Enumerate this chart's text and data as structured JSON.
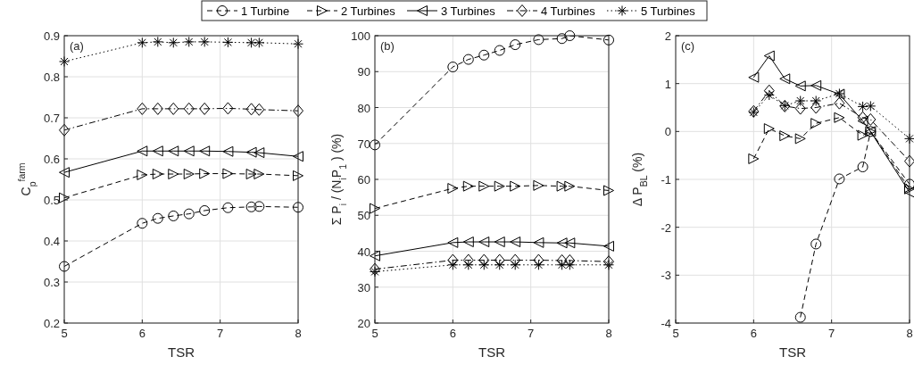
{
  "chart_data": [
    {
      "type": "line",
      "ylabel": "C$_{p}$$^{farm}$",
      "xlabel": "TSR",
      "annotations": [
        "(a)"
      ],
      "x": [
        5,
        6,
        6.2,
        6.4,
        6.6,
        6.8,
        7.1,
        7.4,
        7.5,
        8
      ],
      "xlim": [
        5,
        8
      ],
      "xticks": [
        5,
        6,
        7,
        8
      ],
      "ylim": [
        0.2,
        0.9
      ],
      "yticks": [
        0.2,
        0.3,
        0.4,
        0.5,
        0.6,
        0.7,
        0.8,
        0.9
      ],
      "grid": true,
      "legend": "top",
      "series": [
        {
          "name": "1 Turbine",
          "color": "#000000",
          "marker": "circle",
          "line_style": "dashed",
          "values": [
            0.338,
            0.443,
            0.455,
            0.461,
            0.466,
            0.474,
            0.481,
            0.483,
            0.484,
            0.482
          ]
        },
        {
          "name": "2 Turbines",
          "color": "#000000",
          "marker": "triangle-right",
          "line_style": "dashed",
          "values": [
            0.505,
            0.561,
            0.563,
            0.563,
            0.563,
            0.564,
            0.564,
            0.563,
            0.563,
            0.559
          ]
        },
        {
          "name": "3 Turbines",
          "color": "#000000",
          "marker": "triangle-left",
          "line_style": "solid",
          "values": [
            0.567,
            0.619,
            0.619,
            0.619,
            0.619,
            0.619,
            0.618,
            0.616,
            0.615,
            0.606
          ]
        },
        {
          "name": "4 Turbines",
          "color": "#000000",
          "marker": "diamond",
          "line_style": "dashdot",
          "values": [
            0.67,
            0.722,
            0.722,
            0.722,
            0.722,
            0.722,
            0.723,
            0.721,
            0.72,
            0.717
          ]
        },
        {
          "name": "5 Turbines",
          "color": "#000000",
          "marker": "cross",
          "line_style": "dotted",
          "values": [
            0.837,
            0.883,
            0.885,
            0.883,
            0.885,
            0.885,
            0.884,
            0.883,
            0.883,
            0.88
          ]
        }
      ]
    },
    {
      "type": "line",
      "ylabel": "Σ P$_{i}$ / (N$_{i}$P$_{1}$ ) (%)",
      "xlabel": "TSR",
      "annotations": [
        "(b)"
      ],
      "x": [
        5,
        6,
        6.2,
        6.4,
        6.6,
        6.8,
        7.1,
        7.4,
        7.5,
        8
      ],
      "xlim": [
        5,
        8
      ],
      "xticks": [
        5,
        6,
        7,
        8
      ],
      "ylim": [
        20,
        100
      ],
      "yticks": [
        20,
        30,
        40,
        50,
        60,
        70,
        80,
        90,
        100
      ],
      "grid": true,
      "series": [
        {
          "color": "#000000",
          "marker": "circle",
          "line_style": "dashed",
          "values": [
            69.6,
            91.3,
            93.4,
            94.6,
            95.9,
            97.5,
            98.9,
            99.2,
            100,
            98.8
          ]
        },
        {
          "color": "#000000",
          "marker": "triangle-right",
          "line_style": "dashed",
          "values": [
            51.9,
            57.5,
            58.1,
            58.1,
            58.1,
            58.1,
            58.3,
            58.1,
            58.1,
            56.9
          ]
        },
        {
          "color": "#000000",
          "marker": "triangle-left",
          "line_style": "solid",
          "values": [
            38.7,
            42.4,
            42.6,
            42.6,
            42.6,
            42.6,
            42.4,
            42.3,
            42.3,
            41.4
          ]
        },
        {
          "color": "#000000",
          "marker": "diamond",
          "line_style": "dashdot",
          "values": [
            35,
            37.5,
            37.5,
            37.5,
            37.5,
            37.5,
            37.5,
            37.4,
            37.4,
            37.1
          ]
        },
        {
          "color": "#000000",
          "marker": "cross",
          "line_style": "dotted",
          "values": [
            34.3,
            36.2,
            36.2,
            36.2,
            36.2,
            36.2,
            36.2,
            36.2,
            36.2,
            36.2
          ]
        }
      ]
    },
    {
      "type": "line",
      "ylabel": "Δ P$_{BL}$ (%)",
      "xlabel": "TSR",
      "annotations": [
        "(c)"
      ],
      "x": [
        6,
        6.2,
        6.4,
        6.6,
        6.8,
        7.1,
        7.4,
        7.5,
        8
      ],
      "xlim": [
        5,
        8
      ],
      "xticks": [
        5,
        6,
        7,
        8
      ],
      "ylim": [
        -4,
        2
      ],
      "yticks": [
        -4,
        -3,
        -2,
        -1,
        0,
        1,
        2
      ],
      "grid": true,
      "series": [
        {
          "color": "#000000",
          "marker": "circle",
          "line_style": "dashed",
          "values": [
            null,
            null,
            null,
            -3.88,
            -2.35,
            -0.99,
            -0.74,
            0,
            -1.1
          ]
        },
        {
          "color": "#000000",
          "marker": "triangle-right",
          "line_style": "dashed",
          "values": [
            -0.57,
            0.06,
            -0.09,
            -0.15,
            0.17,
            0.29,
            -0.08,
            0,
            -1.2
          ]
        },
        {
          "color": "#000000",
          "marker": "triangle-left",
          "line_style": "solid",
          "values": [
            1.13,
            1.58,
            1.1,
            0.95,
            0.96,
            0.78,
            0.22,
            0,
            -1.27
          ]
        },
        {
          "color": "#000000",
          "marker": "diamond",
          "line_style": "dashdot",
          "values": [
            0.42,
            0.85,
            0.53,
            0.48,
            0.5,
            0.59,
            0.29,
            0.25,
            -0.62
          ]
        },
        {
          "color": "#000000",
          "marker": "cross",
          "line_style": "dotted",
          "values": [
            0.4,
            0.76,
            0.54,
            0.64,
            0.64,
            0.79,
            0.52,
            0.53,
            -0.15
          ]
        }
      ]
    }
  ]
}
